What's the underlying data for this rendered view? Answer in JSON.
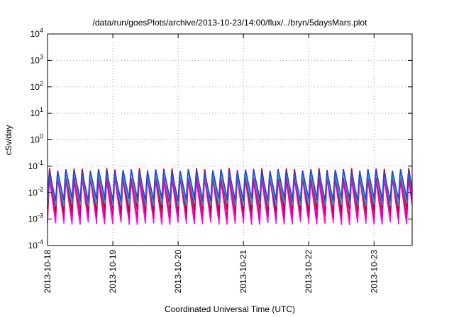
{
  "chart_data": {
    "type": "line",
    "title": "/data/run/goesPlots/archive/2013-10-23/14:00/flux/../bryn/5daysMars.plot",
    "xlabel": "Coordinated Universal Time (UTC)",
    "ylabel": "cSv/day",
    "y_scale": "log",
    "ylim": [
      0.0001,
      10000
    ],
    "y_ticks": [
      {
        "value": 0.0001,
        "mantissa": "10",
        "exp": "-4"
      },
      {
        "value": 0.001,
        "mantissa": "10",
        "exp": "-3"
      },
      {
        "value": 0.01,
        "mantissa": "10",
        "exp": "-2"
      },
      {
        "value": 0.1,
        "mantissa": "10",
        "exp": "-1"
      },
      {
        "value": 1,
        "mantissa": "10",
        "exp": "0"
      },
      {
        "value": 10,
        "mantissa": "10",
        "exp": "1"
      },
      {
        "value": 100,
        "mantissa": "10",
        "exp": "2"
      },
      {
        "value": 1000,
        "mantissa": "10",
        "exp": "3"
      },
      {
        "value": 10000,
        "mantissa": "10",
        "exp": "4"
      }
    ],
    "xlim": [
      "2013-10-18T00:00",
      "2013-10-23T14:00"
    ],
    "x_ticks": [
      "2013-10-18",
      "2013-10-19",
      "2013-10-20",
      "2013-10-21",
      "2013-10-22",
      "2013-10-23"
    ],
    "grid": true,
    "legend": "none",
    "period_hours": 3,
    "series": [
      {
        "color": "#ff00ff",
        "peak": 0.035,
        "trough": 0.0007
      },
      {
        "color": "#e0007a",
        "peak": 0.045,
        "trough": 0.0012
      },
      {
        "color": "#c00020",
        "peak": 0.085,
        "trough": 0.0022
      },
      {
        "color": "#00b5c8",
        "peak": 0.06,
        "trough": 0.0035
      },
      {
        "color": "#2e3fd8",
        "peak": 0.075,
        "trough": 0.0055
      }
    ]
  }
}
